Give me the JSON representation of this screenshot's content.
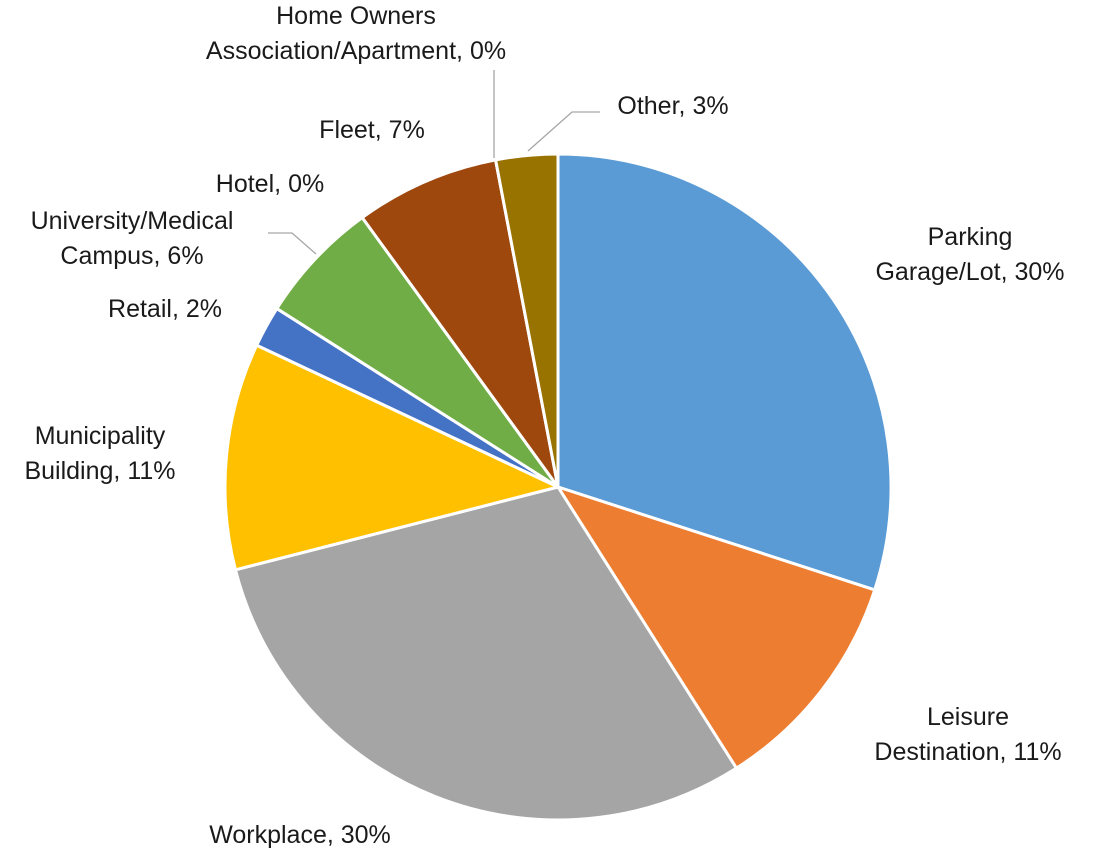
{
  "chart_data": {
    "type": "pie",
    "categories": [
      "Parking Garage/Lot",
      "Leisure Destination",
      "Workplace",
      "Municipality Building",
      "Retail",
      "University/Medical Campus",
      "Hotel",
      "Fleet",
      "Home Owners Association/Apartment",
      "Other"
    ],
    "values": [
      30,
      11,
      30,
      11,
      2,
      6,
      0,
      7,
      0,
      3
    ],
    "value_labels": [
      "30%",
      "11%",
      "30%",
      "11%",
      "2%",
      "6%",
      "0%",
      "7%",
      "0%",
      "3%"
    ],
    "colors": [
      "#5b9bd5",
      "#ed7d31",
      "#a5a5a5",
      "#ffc000",
      "#4472c4",
      "#70ad47",
      "#255e91",
      "#9e480e",
      "#636363",
      "#997300"
    ]
  }
}
